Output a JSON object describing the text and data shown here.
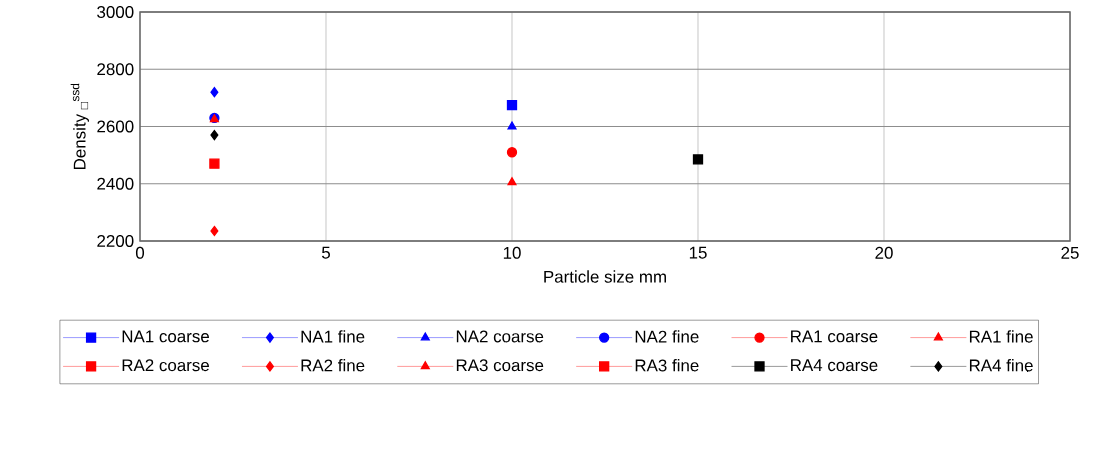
{
  "chart_data": {
    "type": "scatter",
    "xlabel": "Particle size mm",
    "ylabel": "Density $_{□}$$^{ssd}$",
    "xlim": [
      0,
      25
    ],
    "xticks": [
      0,
      5,
      10,
      15,
      20,
      25
    ],
    "ylim": [
      2200,
      3000
    ],
    "yticks": [
      2200,
      2400,
      2600,
      2800,
      3000
    ],
    "grid": true,
    "legend": "bottom",
    "series": [
      {
        "name": "NA1 coarse",
        "color": "#0000ff",
        "marker": "square",
        "x": [
          10
        ],
        "values": [
          2675
        ]
      },
      {
        "name": "NA1 fine",
        "color": "#0000ff",
        "marker": "diamond",
        "x": [
          2
        ],
        "values": [
          2720
        ]
      },
      {
        "name": "NA2 coarse",
        "color": "#0000ff",
        "marker": "triangle",
        "x": [
          10
        ],
        "values": [
          2600
        ]
      },
      {
        "name": "NA2 fine",
        "color": "#0000ff",
        "marker": "circle",
        "x": [
          2
        ],
        "values": [
          2630
        ]
      },
      {
        "name": "RA1 coarse",
        "color": "#ff0000",
        "marker": "circle",
        "x": [
          10
        ],
        "values": [
          2510
        ]
      },
      {
        "name": "RA1 fine",
        "color": "#ff0000",
        "marker": "triangle",
        "x": [
          2
        ],
        "values": [
          2625
        ]
      },
      {
        "name": "RA2 coarse",
        "color": "#ff0000",
        "marker": "square",
        "x": [
          null
        ],
        "values": [
          null
        ]
      },
      {
        "name": "RA2 fine",
        "color": "#ff0000",
        "marker": "diamond",
        "x": [
          2
        ],
        "values": [
          2235
        ]
      },
      {
        "name": "RA3 coarse",
        "color": "#ff0000",
        "marker": "triangle",
        "x": [
          10
        ],
        "values": [
          2405
        ]
      },
      {
        "name": "RA3 fine",
        "color": "#ff0000",
        "marker": "square",
        "x": [
          2
        ],
        "values": [
          2470
        ]
      },
      {
        "name": "RA4 coarse",
        "color": "#000000",
        "marker": "square",
        "x": [
          15
        ],
        "values": [
          2485
        ]
      },
      {
        "name": "RA4 fine",
        "color": "#000000",
        "marker": "diamond",
        "x": [
          2
        ],
        "values": [
          2570
        ]
      }
    ]
  }
}
